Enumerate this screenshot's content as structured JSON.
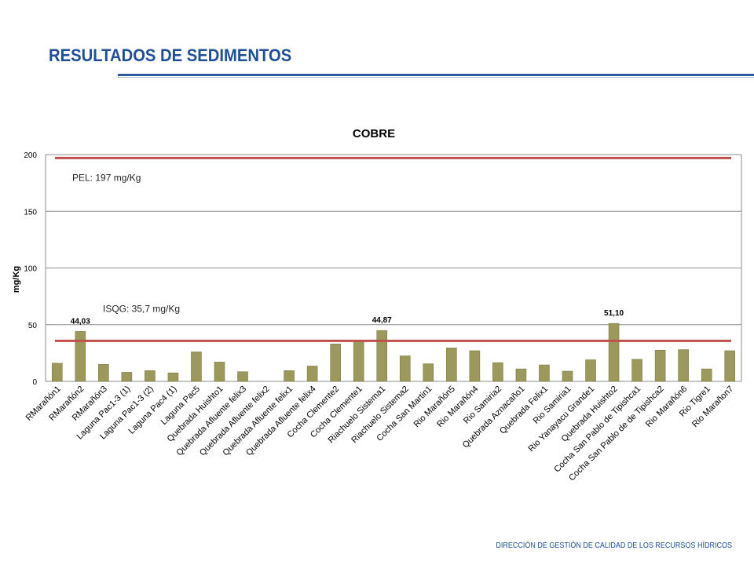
{
  "slide": {
    "title": "RESULTADOS DE SEDIMENTOS",
    "footer": "DIRECCIÓN DE GESTIÓN DE CALIDAD DE LOS RECURSOS HÍDRICOS"
  },
  "colors": {
    "title": "#1f4e9a",
    "bar": "#9b9a5c",
    "bar_stroke": "#7d7c45",
    "reference_line": "#c0504d",
    "gridline": "#8c8c8c"
  },
  "chart_data": {
    "type": "bar",
    "title": "COBRE",
    "xlabel": "",
    "ylabel": "mg/Kg",
    "ylim": [
      0,
      200
    ],
    "yticks": [
      0,
      50,
      100,
      150,
      200
    ],
    "grid": true,
    "categories": [
      "RMarañón1",
      "RMarañón2",
      "RMarañón3",
      "Laguna Pac1-3 (1)",
      "Laguna Pac1-3 (2)",
      "Laguna Pac4 (1)",
      "Laguna Pac5",
      "Quebrada Huishto1",
      "Quebrada Afluente felix3",
      "Quebrada Afluente felix2",
      "Quebrada Afluente felix1",
      "Quebrada Afluente felix4",
      "Cocha Clemente2",
      "Cocha Clemente1",
      "Riachuelo Sistema1",
      "Riachuelo Sistema2",
      "Cocha San Martin1",
      "Rio Marañón5",
      "Rio Marañón4",
      "Rio Samiria2",
      "Quebrada Aznacaño1",
      "Quebrada Felix1",
      "Rio Samiria1",
      "Rio Yanayacu Grande1",
      "Quebrada Huishto2",
      "Cocha San Pablo de Tipishca1",
      "Cocha San Pablo de de Tipishca2",
      "Rio Marañón6",
      "Rio Tigre1",
      "Rio Marañon7"
    ],
    "values": [
      16,
      44.03,
      15,
      8,
      9.5,
      7.5,
      26,
      17,
      8.5,
      0,
      9.5,
      13.5,
      33,
      36,
      44.87,
      22.5,
      15.5,
      29.5,
      27,
      16.5,
      11,
      14.5,
      9,
      19,
      51.1,
      19.5,
      27.5,
      28,
      11,
      27
    ],
    "data_labels": [
      {
        "category": "RMarañón2",
        "text": "44,03"
      },
      {
        "category": "Riachuelo Sistema1",
        "text": "44,87"
      },
      {
        "category": "Quebrada Huishto2",
        "text": "51,10"
      }
    ],
    "reference_lines": [
      {
        "label": "PEL: 197 mg/Kg",
        "value": 197
      },
      {
        "label": "ISQG: 35,7 mg/Kg",
        "value": 35.7
      }
    ]
  }
}
